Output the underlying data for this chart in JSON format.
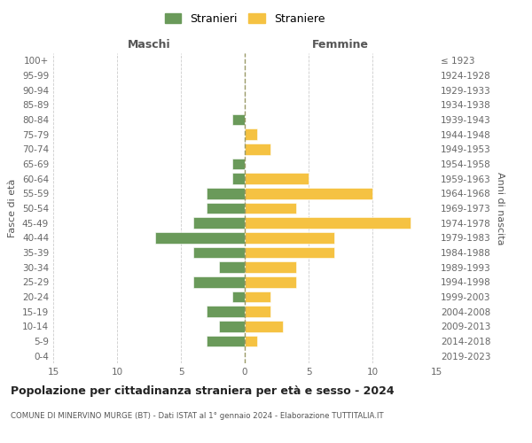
{
  "age_groups": [
    "0-4",
    "5-9",
    "10-14",
    "15-19",
    "20-24",
    "25-29",
    "30-34",
    "35-39",
    "40-44",
    "45-49",
    "50-54",
    "55-59",
    "60-64",
    "65-69",
    "70-74",
    "75-79",
    "80-84",
    "85-89",
    "90-94",
    "95-99",
    "100+"
  ],
  "birth_years": [
    "2019-2023",
    "2014-2018",
    "2009-2013",
    "2004-2008",
    "1999-2003",
    "1994-1998",
    "1989-1993",
    "1984-1988",
    "1979-1983",
    "1974-1978",
    "1969-1973",
    "1964-1968",
    "1959-1963",
    "1954-1958",
    "1949-1953",
    "1944-1948",
    "1939-1943",
    "1934-1938",
    "1929-1933",
    "1924-1928",
    "≤ 1923"
  ],
  "maschi": [
    0,
    3,
    2,
    3,
    1,
    4,
    2,
    4,
    7,
    4,
    3,
    3,
    1,
    1,
    0,
    0,
    1,
    0,
    0,
    0,
    0
  ],
  "femmine": [
    0,
    1,
    3,
    2,
    2,
    4,
    4,
    7,
    7,
    13,
    4,
    10,
    5,
    0,
    2,
    1,
    0,
    0,
    0,
    0,
    0
  ],
  "maschi_color": "#6a9a5a",
  "femmine_color": "#f5c242",
  "background_color": "#ffffff",
  "title": "Popolazione per cittadinanza straniera per età e sesso - 2024",
  "subtitle": "COMUNE DI MINERVINO MURGE (BT) - Dati ISTAT al 1° gennaio 2024 - Elaborazione TUTTITALIA.IT",
  "xlabel_left": "Maschi",
  "xlabel_right": "Femmine",
  "ylabel_left": "Fasce di età",
  "ylabel_right": "Anni di nascita",
  "legend_maschi": "Stranieri",
  "legend_femmine": "Straniere",
  "xlim": 15,
  "grid_color": "#cccccc"
}
